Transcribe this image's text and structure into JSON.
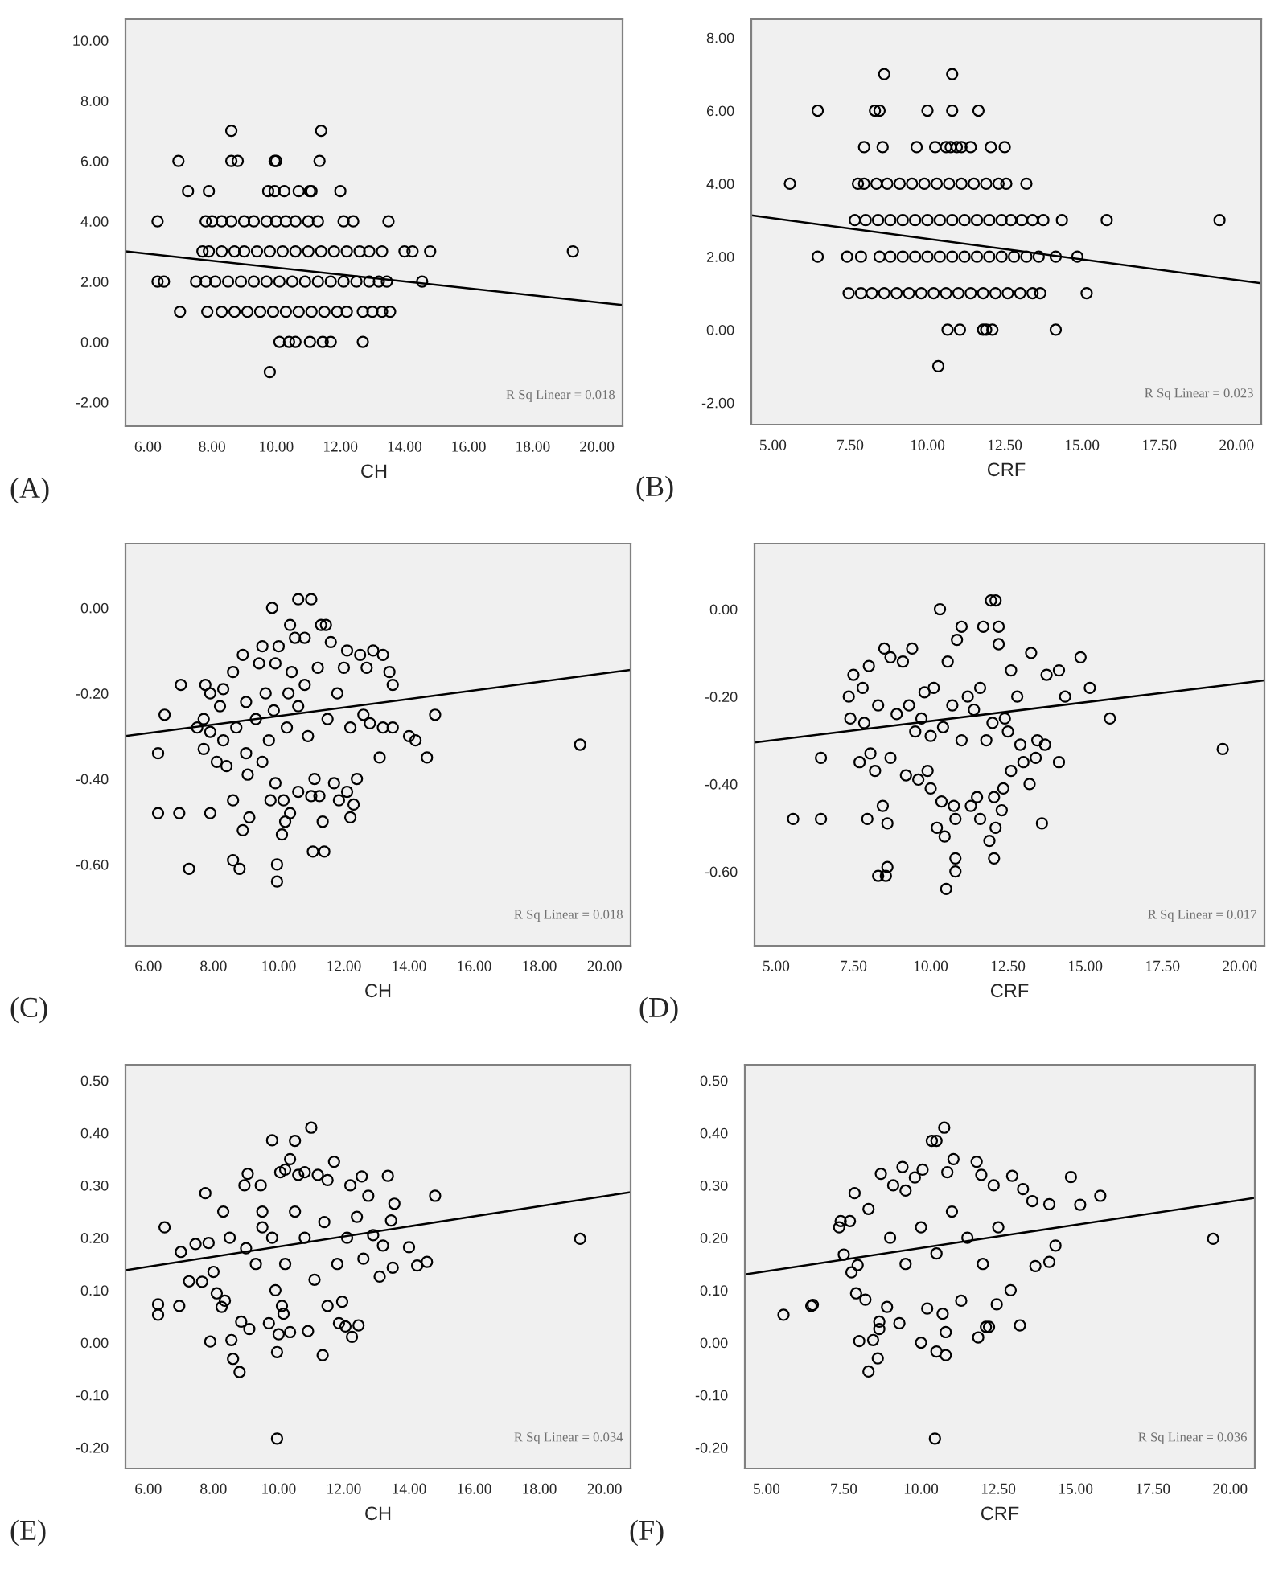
{
  "chart_data": [
    {
      "type": "scatter",
      "title": "(A)",
      "xlabel": "CH",
      "annotations": [
        "R Sq Linear = 0.018"
      ],
      "xlim": [
        5.3,
        20.8
      ],
      "ylim": [
        -2.8,
        10.7
      ],
      "xticks": [
        {
          "value": 6,
          "label": "6.00"
        },
        {
          "value": 8,
          "label": "8.00"
        },
        {
          "value": 10,
          "label": "10.00"
        },
        {
          "value": 12,
          "label": "12.00"
        },
        {
          "value": 14,
          "label": "14.00"
        },
        {
          "value": 16,
          "label": "16.00"
        },
        {
          "value": 18,
          "label": "18.00"
        },
        {
          "value": 20,
          "label": "20.00"
        }
      ],
      "yticks": [
        {
          "value": -2,
          "label": "-2.00"
        },
        {
          "value": 0,
          "label": "0.00"
        },
        {
          "value": 2,
          "label": "2.00"
        },
        {
          "value": 4,
          "label": "4.00"
        },
        {
          "value": 6,
          "label": "6.00"
        },
        {
          "value": 8,
          "label": "8.00"
        },
        {
          "value": 10,
          "label": "10.00"
        }
      ],
      "series": [
        {
          "marker": "circle",
          "color": "#000000",
          "x": [
            8.6,
            11.4,
            6.95,
            8.6,
            8.8,
            9.95,
            10.0,
            11.35,
            7.25,
            7.9,
            9.75,
            9.95,
            10.25,
            10.7,
            11.05,
            11.1,
            12.0,
            6.3,
            7.8,
            8.0,
            8.3,
            8.6,
            9.0,
            9.3,
            9.7,
            10.0,
            10.3,
            10.6,
            11.0,
            11.3,
            12.1,
            12.4,
            13.5,
            7.7,
            7.9,
            8.3,
            8.7,
            9.0,
            9.4,
            9.8,
            10.2,
            10.6,
            11.0,
            11.4,
            11.8,
            12.2,
            12.6,
            12.9,
            13.3,
            14.0,
            14.25,
            14.8,
            19.25,
            6.3,
            6.5,
            7.5,
            7.8,
            8.1,
            8.5,
            8.9,
            9.3,
            9.7,
            10.1,
            10.5,
            10.9,
            11.3,
            11.7,
            12.1,
            12.5,
            12.9,
            13.2,
            13.45,
            14.55,
            7.0,
            7.85,
            8.3,
            8.7,
            9.1,
            9.5,
            9.9,
            10.3,
            10.7,
            11.1,
            11.5,
            11.9,
            12.2,
            12.7,
            13.0,
            13.3,
            13.55,
            10.1,
            10.4,
            10.6,
            11.05,
            11.45,
            11.7,
            12.7,
            9.8
          ],
          "values": [
            7,
            7,
            6,
            6,
            6,
            6,
            6,
            6,
            5,
            5,
            5,
            5,
            5,
            5,
            5,
            5,
            5,
            4,
            4,
            4,
            4,
            4,
            4,
            4,
            4,
            4,
            4,
            4,
            4,
            4,
            4,
            4,
            4,
            3,
            3,
            3,
            3,
            3,
            3,
            3,
            3,
            3,
            3,
            3,
            3,
            3,
            3,
            3,
            3,
            3,
            3,
            3,
            3,
            2,
            2,
            2,
            2,
            2,
            2,
            2,
            2,
            2,
            2,
            2,
            2,
            2,
            2,
            2,
            2,
            2,
            2,
            2,
            2,
            1,
            1,
            1,
            1,
            1,
            1,
            1,
            1,
            1,
            1,
            1,
            1,
            1,
            1,
            1,
            1,
            1,
            0,
            0,
            0,
            0,
            0,
            0,
            0,
            -1
          ]
        },
        {
          "type": "line",
          "color": "#000000",
          "x": [
            5.3,
            20.8
          ],
          "values": [
            3.0,
            1.22
          ]
        }
      ]
    },
    {
      "type": "scatter",
      "title": "(B)",
      "xlabel": "CRF",
      "annotations": [
        "R Sq Linear = 0.023"
      ],
      "xlim": [
        4.3,
        20.8
      ],
      "ylim": [
        -2.6,
        8.5
      ],
      "xticks": [
        {
          "value": 5,
          "label": "5.00"
        },
        {
          "value": 7.5,
          "label": "7.50"
        },
        {
          "value": 10,
          "label": "10.00"
        },
        {
          "value": 12.5,
          "label": "12.50"
        },
        {
          "value": 15,
          "label": "15.00"
        },
        {
          "value": 17.5,
          "label": "17.50"
        },
        {
          "value": 20,
          "label": "20.00"
        }
      ],
      "yticks": [
        {
          "value": -2,
          "label": "-2.00"
        },
        {
          "value": 0,
          "label": "0.00"
        },
        {
          "value": 2,
          "label": "2.00"
        },
        {
          "value": 4,
          "label": "4.00"
        },
        {
          "value": 6,
          "label": "6.00"
        },
        {
          "value": 8,
          "label": "8.00"
        }
      ],
      "series": [
        {
          "marker": "circle",
          "color": "#000000",
          "x": [
            8.6,
            10.8,
            6.45,
            8.3,
            8.45,
            10.0,
            10.8,
            11.65,
            7.95,
            8.55,
            9.65,
            10.25,
            10.6,
            10.75,
            10.95,
            11.1,
            11.4,
            12.05,
            12.5,
            5.55,
            7.75,
            7.95,
            8.35,
            8.7,
            9.1,
            9.5,
            9.9,
            10.3,
            10.7,
            11.1,
            11.5,
            11.9,
            12.3,
            12.55,
            13.2,
            7.65,
            8.0,
            8.4,
            8.8,
            9.2,
            9.6,
            10.0,
            10.4,
            10.8,
            11.2,
            11.6,
            12.0,
            12.4,
            12.7,
            13.05,
            13.4,
            13.75,
            14.35,
            15.8,
            19.45,
            6.45,
            7.4,
            7.85,
            8.45,
            8.8,
            9.2,
            9.6,
            10.0,
            10.4,
            10.8,
            11.2,
            11.6,
            12.0,
            12.4,
            12.8,
            13.2,
            13.6,
            14.15,
            14.85,
            7.45,
            7.85,
            8.2,
            8.6,
            9.0,
            9.4,
            9.8,
            10.2,
            10.6,
            11.0,
            11.4,
            11.8,
            12.2,
            12.6,
            13.0,
            13.4,
            13.65,
            15.15,
            10.65,
            11.05,
            11.8,
            11.9,
            12.1,
            14.15,
            10.35
          ],
          "values": [
            7,
            7,
            6,
            6,
            6,
            6,
            6,
            6,
            5,
            5,
            5,
            5,
            5,
            5,
            5,
            5,
            5,
            5,
            5,
            4,
            4,
            4,
            4,
            4,
            4,
            4,
            4,
            4,
            4,
            4,
            4,
            4,
            4,
            4,
            4,
            3,
            3,
            3,
            3,
            3,
            3,
            3,
            3,
            3,
            3,
            3,
            3,
            3,
            3,
            3,
            3,
            3,
            3,
            3,
            3,
            2,
            2,
            2,
            2,
            2,
            2,
            2,
            2,
            2,
            2,
            2,
            2,
            2,
            2,
            2,
            2,
            2,
            2,
            2,
            1,
            1,
            1,
            1,
            1,
            1,
            1,
            1,
            1,
            1,
            1,
            1,
            1,
            1,
            1,
            1,
            1,
            1,
            0,
            0,
            0,
            0,
            0,
            0,
            -1
          ]
        },
        {
          "type": "line",
          "color": "#000000",
          "x": [
            4.3,
            20.8
          ],
          "values": [
            3.13,
            1.27
          ]
        }
      ]
    },
    {
      "type": "scatter",
      "title": "(C)",
      "xlabel": "CH",
      "annotations": [
        "R Sq Linear = 0.018"
      ],
      "xlim": [
        5.3,
        20.8
      ],
      "ylim": [
        -0.79,
        0.15
      ],
      "xticks": [
        {
          "value": 6,
          "label": "6.00"
        },
        {
          "value": 8,
          "label": "8.00"
        },
        {
          "value": 10,
          "label": "10.00"
        },
        {
          "value": 12,
          "label": "12.00"
        },
        {
          "value": 14,
          "label": "14.00"
        },
        {
          "value": 16,
          "label": "16.00"
        },
        {
          "value": 18,
          "label": "18.00"
        },
        {
          "value": 20,
          "label": "20.00"
        }
      ],
      "yticks": [
        {
          "value": -0.6,
          "label": "-0.60"
        },
        {
          "value": -0.4,
          "label": "-0.40"
        },
        {
          "value": -0.2,
          "label": "-0.20"
        },
        {
          "value": 0,
          "label": "0.00"
        }
      ],
      "series": [
        {
          "marker": "circle",
          "color": "#000000",
          "x": [
            6.3,
            6.3,
            6.5,
            6.95,
            7.0,
            7.25,
            7.5,
            7.7,
            7.7,
            7.75,
            7.9,
            7.9,
            7.9,
            8.1,
            8.2,
            8.3,
            8.3,
            8.4,
            8.6,
            8.6,
            8.6,
            8.7,
            8.8,
            8.9,
            8.9,
            9.0,
            9.0,
            9.05,
            9.1,
            9.3,
            9.4,
            9.5,
            9.5,
            9.6,
            9.7,
            9.75,
            9.8,
            9.85,
            9.9,
            9.9,
            9.95,
            9.95,
            10.0,
            10.1,
            10.15,
            10.2,
            10.25,
            10.3,
            10.35,
            10.35,
            10.4,
            10.5,
            10.6,
            10.6,
            10.6,
            10.8,
            10.8,
            10.9,
            11.0,
            11.0,
            11.05,
            11.1,
            11.2,
            11.25,
            11.3,
            11.35,
            11.4,
            11.45,
            11.5,
            11.6,
            11.7,
            11.8,
            11.85,
            12.0,
            12.1,
            12.1,
            12.2,
            12.2,
            12.3,
            12.4,
            12.5,
            12.6,
            12.7,
            12.8,
            12.9,
            13.1,
            13.2,
            13.2,
            13.4,
            13.5,
            13.5,
            14.0,
            14.2,
            14.55,
            14.8,
            19.25
          ],
          "values": [
            -0.34,
            -0.48,
            -0.25,
            -0.48,
            -0.18,
            -0.61,
            -0.28,
            -0.26,
            -0.33,
            -0.18,
            -0.48,
            -0.29,
            -0.2,
            -0.36,
            -0.23,
            -0.19,
            -0.31,
            -0.37,
            -0.15,
            -0.45,
            -0.59,
            -0.28,
            -0.61,
            -0.52,
            -0.11,
            -0.22,
            -0.34,
            -0.39,
            -0.49,
            -0.26,
            -0.13,
            -0.09,
            -0.36,
            -0.2,
            -0.31,
            -0.45,
            0.0,
            -0.24,
            -0.13,
            -0.41,
            -0.64,
            -0.6,
            -0.09,
            -0.53,
            -0.45,
            -0.5,
            -0.28,
            -0.2,
            -0.04,
            -0.48,
            -0.15,
            -0.07,
            0.02,
            -0.43,
            -0.23,
            -0.07,
            -0.18,
            -0.3,
            0.02,
            -0.44,
            -0.57,
            -0.4,
            -0.14,
            -0.44,
            -0.04,
            -0.5,
            -0.57,
            -0.04,
            -0.26,
            -0.08,
            -0.41,
            -0.2,
            -0.45,
            -0.14,
            -0.1,
            -0.43,
            -0.49,
            -0.28,
            -0.46,
            -0.4,
            -0.11,
            -0.25,
            -0.14,
            -0.27,
            -0.1,
            -0.35,
            -0.11,
            -0.28,
            -0.15,
            -0.18,
            -0.28,
            -0.3,
            -0.31,
            -0.35,
            -0.25,
            -0.32
          ]
        },
        {
          "type": "line",
          "color": "#000000",
          "x": [
            5.3,
            20.8
          ],
          "values": [
            -0.3,
            -0.145
          ]
        }
      ]
    },
    {
      "type": "scatter",
      "title": "(D)",
      "xlabel": "CRF",
      "annotations": [
        "R Sq Linear = 0.017"
      ],
      "xlim": [
        4.3,
        20.8
      ],
      "ylim": [
        -0.77,
        0.15
      ],
      "xticks": [
        {
          "value": 5,
          "label": "5.00"
        },
        {
          "value": 7.5,
          "label": "7.50"
        },
        {
          "value": 10,
          "label": "10.00"
        },
        {
          "value": 12.5,
          "label": "12.50"
        },
        {
          "value": 15,
          "label": "15.00"
        },
        {
          "value": 17.5,
          "label": "17.50"
        },
        {
          "value": 20,
          "label": "20.00"
        }
      ],
      "yticks": [
        {
          "value": -0.6,
          "label": "-0.60"
        },
        {
          "value": -0.4,
          "label": "-0.40"
        },
        {
          "value": -0.2,
          "label": "-0.20"
        },
        {
          "value": 0,
          "label": "0.00"
        }
      ],
      "series": [
        {
          "marker": "circle",
          "color": "#000000",
          "x": [
            5.55,
            6.45,
            6.45,
            7.35,
            7.4,
            7.5,
            7.7,
            7.8,
            7.85,
            7.95,
            8.0,
            8.05,
            8.2,
            8.3,
            8.3,
            8.45,
            8.5,
            8.55,
            8.6,
            8.6,
            8.7,
            8.7,
            8.9,
            9.1,
            9.2,
            9.4,
            9.5,
            9.6,
            9.8,
            9.9,
            10.0,
            10.0,
            10.2,
            10.3,
            10.35,
            10.45,
            10.5,
            10.55,
            10.7,
            10.75,
            10.8,
            10.8,
            10.8,
            10.85,
            11.0,
            11.0,
            11.2,
            11.3,
            11.5,
            11.6,
            11.7,
            11.8,
            11.9,
            11.95,
            12.05,
            12.05,
            12.1,
            12.1,
            12.2,
            12.2,
            12.3,
            12.35,
            12.4,
            12.6,
            12.6,
            12.8,
            12.9,
            13.0,
            13.2,
            13.25,
            13.4,
            13.45,
            13.6,
            13.7,
            13.75,
            14.15,
            14.15,
            14.35,
            14.85,
            15.15,
            15.8,
            19.45,
            9.3,
            9.7,
            10.1,
            10.4,
            11.4,
            11.6,
            12.0,
            12.5
          ],
          "values": [
            -0.48,
            -0.34,
            -0.48,
            -0.2,
            -0.25,
            -0.15,
            -0.35,
            -0.18,
            -0.26,
            -0.48,
            -0.13,
            -0.33,
            -0.37,
            -0.61,
            -0.22,
            -0.45,
            -0.09,
            -0.61,
            -0.59,
            -0.49,
            -0.11,
            -0.34,
            -0.24,
            -0.12,
            -0.38,
            -0.09,
            -0.28,
            -0.39,
            -0.19,
            -0.37,
            -0.41,
            -0.29,
            -0.5,
            0.0,
            -0.44,
            -0.52,
            -0.64,
            -0.12,
            -0.22,
            -0.45,
            -0.57,
            -0.6,
            -0.48,
            -0.07,
            -0.04,
            -0.3,
            -0.2,
            -0.45,
            -0.43,
            -0.48,
            -0.04,
            -0.3,
            -0.53,
            0.02,
            -0.57,
            -0.43,
            0.02,
            -0.5,
            -0.04,
            -0.08,
            -0.46,
            -0.41,
            -0.25,
            -0.37,
            -0.14,
            -0.2,
            -0.31,
            -0.35,
            -0.4,
            -0.1,
            -0.34,
            -0.3,
            -0.49,
            -0.31,
            -0.15,
            -0.35,
            -0.14,
            -0.2,
            -0.11,
            -0.18,
            -0.25,
            -0.32,
            -0.22,
            -0.25,
            -0.18,
            -0.27,
            -0.23,
            -0.18,
            -0.26,
            -0.28
          ]
        },
        {
          "type": "line",
          "color": "#000000",
          "x": [
            4.3,
            20.8
          ],
          "values": [
            -0.305,
            -0.163
          ]
        }
      ]
    },
    {
      "type": "scatter",
      "title": "(E)",
      "xlabel": "CH",
      "annotations": [
        "R Sq Linear = 0.034"
      ],
      "xlim": [
        5.3,
        20.8
      ],
      "ylim": [
        -0.24,
        0.53
      ],
      "xticks": [
        {
          "value": 6,
          "label": "6.00"
        },
        {
          "value": 8,
          "label": "8.00"
        },
        {
          "value": 10,
          "label": "10.00"
        },
        {
          "value": 12,
          "label": "12.00"
        },
        {
          "value": 14,
          "label": "14.00"
        },
        {
          "value": 16,
          "label": "16.00"
        },
        {
          "value": 18,
          "label": "18.00"
        },
        {
          "value": 20,
          "label": "20.00"
        }
      ],
      "yticks": [
        {
          "value": -0.2,
          "label": "-0.20"
        },
        {
          "value": -0.1,
          "label": "-0.10"
        },
        {
          "value": 0,
          "label": "0.00"
        },
        {
          "value": 0.1,
          "label": "0.10"
        },
        {
          "value": 0.2,
          "label": "0.20"
        },
        {
          "value": 0.3,
          "label": "0.30"
        },
        {
          "value": 0.4,
          "label": "0.40"
        },
        {
          "value": 0.5,
          "label": "0.50"
        }
      ],
      "series": [
        {
          "marker": "circle",
          "color": "#000000",
          "x": [
            6.3,
            6.3,
            6.5,
            6.95,
            7.0,
            7.25,
            7.45,
            7.65,
            7.75,
            7.85,
            7.9,
            8.0,
            8.1,
            8.25,
            8.3,
            8.35,
            8.55,
            8.6,
            8.8,
            8.85,
            8.95,
            9.05,
            9.1,
            9.3,
            9.45,
            9.5,
            9.7,
            9.8,
            9.9,
            9.95,
            9.95,
            10.0,
            10.05,
            10.1,
            10.15,
            10.2,
            10.35,
            10.35,
            10.5,
            10.6,
            10.8,
            10.9,
            11.0,
            11.2,
            11.35,
            11.5,
            11.5,
            11.7,
            11.85,
            11.95,
            12.05,
            12.2,
            12.25,
            12.45,
            12.55,
            12.6,
            12.75,
            12.9,
            13.1,
            13.2,
            13.35,
            13.45,
            13.5,
            13.55,
            14.0,
            14.25,
            14.55,
            14.8,
            19.25,
            8.5,
            9.0,
            9.5,
            9.8,
            10.2,
            10.5,
            10.8,
            11.1,
            11.4,
            11.8,
            12.1,
            12.4
          ],
          "values": [
            0.073,
            0.053,
            0.22,
            0.07,
            0.173,
            0.117,
            0.188,
            0.116,
            0.285,
            0.19,
            0.002,
            0.135,
            0.094,
            0.068,
            0.25,
            0.08,
            0.005,
            -0.031,
            -0.056,
            0.04,
            0.3,
            0.322,
            0.026,
            0.15,
            0.3,
            0.22,
            0.037,
            0.386,
            0.1,
            -0.018,
            -0.183,
            0.016,
            0.325,
            0.07,
            0.055,
            0.33,
            0.02,
            0.35,
            0.385,
            0.32,
            0.325,
            0.022,
            0.41,
            0.32,
            -0.024,
            0.07,
            0.31,
            0.345,
            0.037,
            0.078,
            0.031,
            0.3,
            0.011,
            0.033,
            0.317,
            0.16,
            0.28,
            0.205,
            0.126,
            0.185,
            0.318,
            0.233,
            0.143,
            0.265,
            0.182,
            0.147,
            0.154,
            0.28,
            0.198,
            0.2,
            0.18,
            0.25,
            0.2,
            0.15,
            0.25,
            0.2,
            0.12,
            0.23,
            0.15,
            0.2,
            0.24
          ]
        },
        {
          "type": "line",
          "color": "#000000",
          "x": [
            5.3,
            20.8
          ],
          "values": [
            0.138,
            0.287
          ]
        }
      ]
    },
    {
      "type": "scatter",
      "title": "(F)",
      "xlabel": "CRF",
      "annotations": [
        "R Sq Linear = 0.036"
      ],
      "xlim": [
        4.3,
        20.8
      ],
      "ylim": [
        -0.24,
        0.53
      ],
      "xticks": [
        {
          "value": 5,
          "label": "5.00"
        },
        {
          "value": 7.5,
          "label": "7.50"
        },
        {
          "value": 10,
          "label": "10.00"
        },
        {
          "value": 12.5,
          "label": "12.50"
        },
        {
          "value": 15,
          "label": "15.00"
        },
        {
          "value": 17.5,
          "label": "17.50"
        },
        {
          "value": 20,
          "label": "20.00"
        }
      ],
      "yticks": [
        {
          "value": -0.2,
          "label": "-0.20"
        },
        {
          "value": -0.1,
          "label": "-0.10"
        },
        {
          "value": 0,
          "label": "0.00"
        },
        {
          "value": 0.1,
          "label": "0.10"
        },
        {
          "value": 0.2,
          "label": "0.20"
        },
        {
          "value": 0.3,
          "label": "0.30"
        },
        {
          "value": 0.4,
          "label": "0.40"
        },
        {
          "value": 0.5,
          "label": "0.50"
        }
      ],
      "series": [
        {
          "marker": "circle",
          "color": "#000000",
          "x": [
            5.55,
            6.45,
            6.5,
            7.35,
            7.4,
            7.5,
            7.7,
            7.75,
            7.85,
            7.9,
            7.95,
            8.0,
            8.2,
            8.3,
            8.3,
            8.45,
            8.6,
            8.65,
            8.65,
            8.7,
            8.9,
            9.1,
            9.3,
            9.4,
            9.5,
            9.8,
            10.0,
            10.05,
            10.2,
            10.35,
            10.5,
            10.5,
            10.7,
            10.75,
            10.8,
            10.8,
            10.85,
            11.05,
            11.3,
            11.8,
            11.85,
            11.95,
            12.1,
            12.2,
            12.35,
            12.45,
            12.9,
            12.95,
            13.2,
            13.3,
            13.6,
            13.7,
            14.15,
            14.15,
            14.35,
            14.85,
            15.15,
            15.8,
            19.45,
            10.45,
            9.0,
            9.5,
            10.0,
            10.5,
            11.0,
            11.5,
            12.0,
            12.5
          ],
          "values": [
            0.053,
            0.07,
            0.072,
            0.22,
            0.232,
            0.168,
            0.232,
            0.134,
            0.285,
            0.094,
            0.148,
            0.003,
            0.082,
            -0.055,
            0.255,
            0.005,
            -0.03,
            0.04,
            0.026,
            0.322,
            0.068,
            0.3,
            0.037,
            0.335,
            0.29,
            0.315,
            0.0,
            0.33,
            0.065,
            0.385,
            -0.017,
            0.385,
            0.055,
            0.41,
            0.02,
            -0.024,
            0.325,
            0.35,
            0.08,
            0.345,
            0.01,
            0.32,
            0.03,
            0.03,
            0.3,
            0.073,
            0.1,
            0.318,
            0.033,
            0.293,
            0.27,
            0.146,
            0.264,
            0.154,
            0.185,
            0.316,
            0.263,
            0.28,
            0.198,
            -0.183,
            0.2,
            0.15,
            0.22,
            0.17,
            0.25,
            0.2,
            0.15,
            0.22
          ]
        },
        {
          "type": "line",
          "color": "#000000",
          "x": [
            4.3,
            20.8
          ],
          "values": [
            0.13,
            0.276
          ]
        }
      ]
    }
  ]
}
